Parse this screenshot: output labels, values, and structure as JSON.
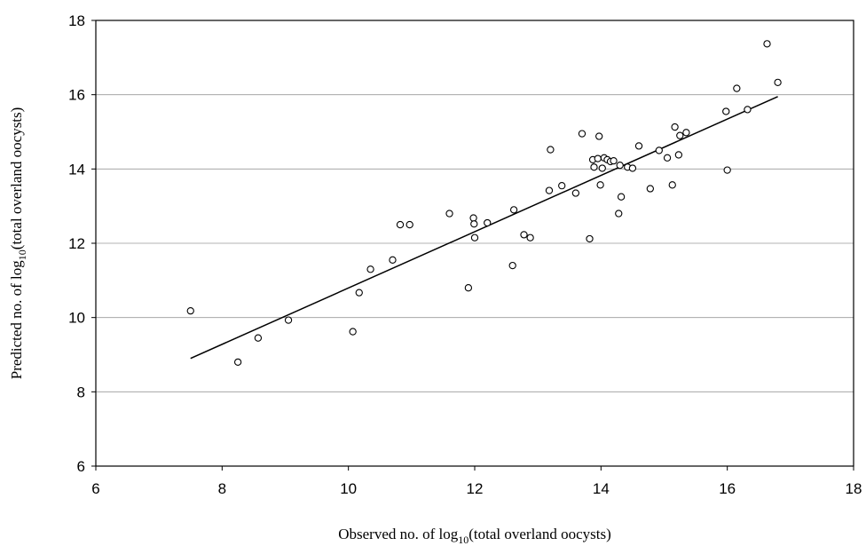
{
  "chart_data": {
    "type": "scatter",
    "xlabel": {
      "pre": "Observed no. of log",
      "sub": "10",
      "post": "(total overland oocysts)"
    },
    "ylabel": {
      "pre": "Predicted no. of log",
      "sub": "10",
      "post": "(total overland oocysts)"
    },
    "xlim": [
      6,
      18
    ],
    "ylim": [
      6,
      18
    ],
    "xticks": [
      6,
      8,
      10,
      12,
      14,
      16,
      18
    ],
    "yticks": [
      6,
      8,
      10,
      12,
      14,
      16,
      18
    ],
    "grid": "horizontal",
    "legend": "none",
    "marker": "open-circle",
    "points": [
      [
        7.5,
        10.18
      ],
      [
        8.25,
        8.8
      ],
      [
        8.57,
        9.45
      ],
      [
        9.05,
        9.93
      ],
      [
        10.07,
        9.62
      ],
      [
        10.17,
        10.67
      ],
      [
        10.35,
        11.3
      ],
      [
        10.7,
        11.55
      ],
      [
        10.82,
        12.5
      ],
      [
        10.97,
        12.5
      ],
      [
        11.6,
        12.8
      ],
      [
        11.9,
        10.8
      ],
      [
        11.98,
        12.68
      ],
      [
        11.99,
        12.52
      ],
      [
        12.0,
        12.15
      ],
      [
        12.2,
        12.55
      ],
      [
        12.6,
        11.4
      ],
      [
        12.62,
        12.9
      ],
      [
        12.78,
        12.23
      ],
      [
        12.88,
        12.15
      ],
      [
        13.18,
        13.42
      ],
      [
        13.2,
        14.52
      ],
      [
        13.38,
        13.55
      ],
      [
        13.6,
        13.35
      ],
      [
        13.7,
        14.95
      ],
      [
        13.82,
        12.12
      ],
      [
        13.87,
        14.25
      ],
      [
        13.89,
        14.05
      ],
      [
        13.95,
        14.28
      ],
      [
        13.97,
        14.88
      ],
      [
        13.99,
        13.57
      ],
      [
        14.02,
        14.02
      ],
      [
        14.05,
        14.3
      ],
      [
        14.1,
        14.25
      ],
      [
        14.15,
        14.2
      ],
      [
        14.2,
        14.22
      ],
      [
        14.28,
        12.8
      ],
      [
        14.3,
        14.1
      ],
      [
        14.32,
        13.25
      ],
      [
        14.42,
        14.05
      ],
      [
        14.5,
        14.02
      ],
      [
        14.6,
        14.62
      ],
      [
        14.78,
        13.47
      ],
      [
        14.92,
        14.5
      ],
      [
        15.05,
        14.3
      ],
      [
        15.13,
        13.57
      ],
      [
        15.17,
        15.13
      ],
      [
        15.23,
        14.38
      ],
      [
        15.25,
        14.9
      ],
      [
        15.35,
        14.98
      ],
      [
        15.98,
        15.55
      ],
      [
        16.0,
        13.97
      ],
      [
        16.15,
        16.17
      ],
      [
        16.32,
        15.6
      ],
      [
        16.63,
        17.37
      ],
      [
        16.8,
        16.33
      ]
    ],
    "fit_line": {
      "x": [
        7.5,
        16.8
      ],
      "y": [
        8.9,
        15.95
      ]
    }
  }
}
